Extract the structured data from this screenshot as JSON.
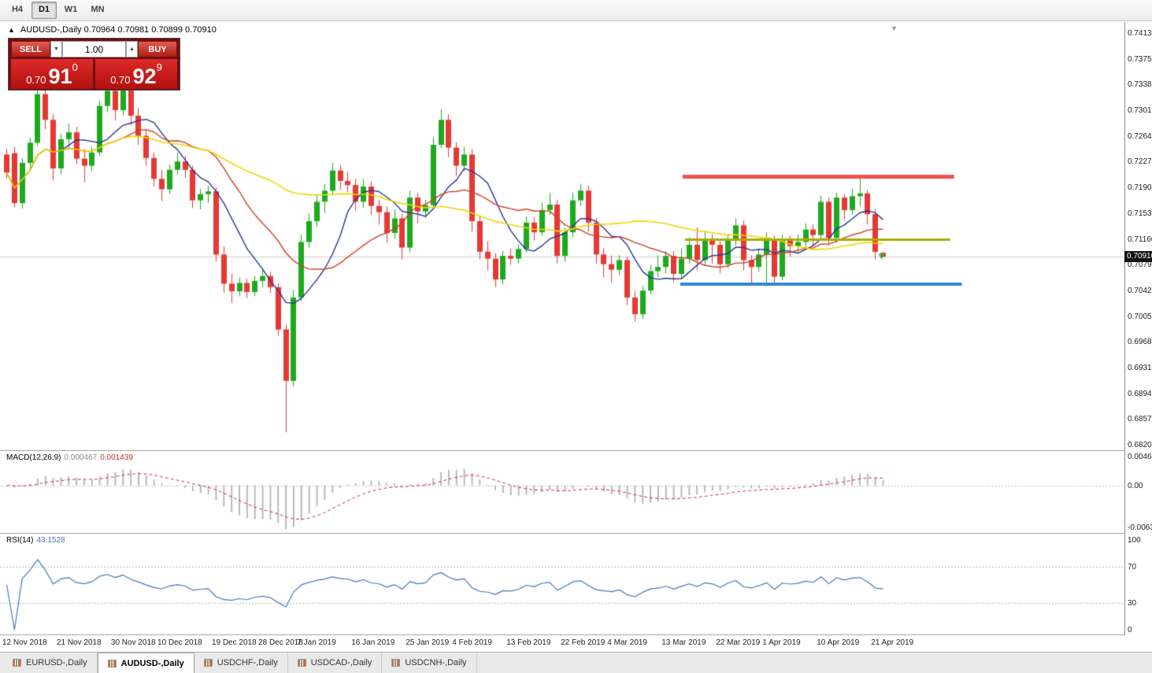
{
  "toolbar": {
    "timeframes": [
      {
        "label": "H4",
        "active": false
      },
      {
        "label": "D1",
        "active": true
      },
      {
        "label": "W1",
        "active": false
      },
      {
        "label": "MN",
        "active": false
      }
    ]
  },
  "chart": {
    "title": "AUDUSD-,Daily 0.70964 0.70981 0.70899 0.70910",
    "one_click": {
      "sell_label": "SELL",
      "buy_label": "BUY",
      "volume": "1.00",
      "sell_price": {
        "prefix": "0.70",
        "big": "91",
        "sup": "0"
      },
      "buy_price": {
        "prefix": "0.70",
        "big": "92",
        "sup": "9"
      }
    },
    "price_axis": {
      "labels": [
        "0.74130",
        "0.73750",
        "0.73380",
        "0.73010",
        "0.72640",
        "0.72270",
        "0.71900",
        "0.71530",
        "0.71160",
        "0.70790",
        "0.70420",
        "0.70050",
        "0.69680",
        "0.69310",
        "0.68940",
        "0.68570",
        "0.68200"
      ],
      "current": "0.70910"
    },
    "date_axis": {
      "labels": [
        {
          "text": "12 Nov 2018",
          "index": 0
        },
        {
          "text": "21 Nov 2018",
          "index": 7
        },
        {
          "text": "30 Nov 2018",
          "index": 14
        },
        {
          "text": "10 Dec 2018",
          "index": 20
        },
        {
          "text": "19 Dec 2018",
          "index": 27
        },
        {
          "text": "28 Dec 2018",
          "index": 33
        },
        {
          "text": "7 Jan 2019",
          "index": 38
        },
        {
          "text": "16 Jan 2019",
          "index": 45
        },
        {
          "text": "25 Jan 2019",
          "index": 52
        },
        {
          "text": "4 Feb 2019",
          "index": 58
        },
        {
          "text": "13 Feb 2019",
          "index": 65
        },
        {
          "text": "22 Feb 2019",
          "index": 72
        },
        {
          "text": "4 Mar 2019",
          "index": 78
        },
        {
          "text": "13 Mar 2019",
          "index": 85
        },
        {
          "text": "22 Mar 2019",
          "index": 92
        },
        {
          "text": "1 Apr 2019",
          "index": 98
        },
        {
          "text": "10 Apr 2019",
          "index": 105
        },
        {
          "text": "21 Apr 2019",
          "index": 112
        }
      ]
    }
  },
  "chart_data": {
    "type": "candlestick",
    "symbol": "AUDUSD-",
    "timeframe": "Daily",
    "bid": 0.7091,
    "colors": {
      "up": "#1fa91f",
      "down": "#e53935",
      "bid_line": "#cccccc"
    },
    "candles": [
      [
        0.7238,
        0.7246,
        0.7204,
        0.7212
      ],
      [
        0.724,
        0.7249,
        0.7162,
        0.7168
      ],
      [
        0.7168,
        0.7233,
        0.716,
        0.7226
      ],
      [
        0.7226,
        0.7262,
        0.7218,
        0.7255
      ],
      [
        0.7255,
        0.7337,
        0.725,
        0.7325
      ],
      [
        0.7325,
        0.7336,
        0.7274,
        0.7288
      ],
      [
        0.7288,
        0.7296,
        0.72,
        0.7218
      ],
      [
        0.7218,
        0.7268,
        0.721,
        0.726
      ],
      [
        0.726,
        0.7283,
        0.7247,
        0.727
      ],
      [
        0.727,
        0.7278,
        0.7224,
        0.7232
      ],
      [
        0.7232,
        0.7246,
        0.7198,
        0.7222
      ],
      [
        0.7222,
        0.7249,
        0.7214,
        0.7241
      ],
      [
        0.7241,
        0.7316,
        0.7236,
        0.7308
      ],
      [
        0.7308,
        0.7337,
        0.7299,
        0.733
      ],
      [
        0.733,
        0.7338,
        0.7287,
        0.7302
      ],
      [
        0.7302,
        0.7342,
        0.7294,
        0.7336
      ],
      [
        0.7336,
        0.7341,
        0.7281,
        0.7294
      ],
      [
        0.7294,
        0.7305,
        0.7252,
        0.7265
      ],
      [
        0.7265,
        0.7273,
        0.7222,
        0.7233
      ],
      [
        0.7233,
        0.7241,
        0.7192,
        0.7203
      ],
      [
        0.7203,
        0.7216,
        0.7171,
        0.7188
      ],
      [
        0.7188,
        0.7223,
        0.7181,
        0.7216
      ],
      [
        0.7216,
        0.7241,
        0.7209,
        0.7228
      ],
      [
        0.7228,
        0.7236,
        0.7204,
        0.7216
      ],
      [
        0.7216,
        0.7222,
        0.7161,
        0.7172
      ],
      [
        0.7172,
        0.7189,
        0.7159,
        0.7181
      ],
      [
        0.7181,
        0.7193,
        0.7168,
        0.7185
      ],
      [
        0.7185,
        0.7191,
        0.7084,
        0.7094
      ],
      [
        0.7094,
        0.7106,
        0.7039,
        0.7052
      ],
      [
        0.7052,
        0.7066,
        0.7024,
        0.7041
      ],
      [
        0.7041,
        0.7061,
        0.7034,
        0.7053
      ],
      [
        0.7053,
        0.7059,
        0.7031,
        0.704
      ],
      [
        0.704,
        0.7063,
        0.7034,
        0.7056
      ],
      [
        0.7056,
        0.7073,
        0.7047,
        0.7063
      ],
      [
        0.7063,
        0.7069,
        0.7039,
        0.7047
      ],
      [
        0.7047,
        0.7053,
        0.6977,
        0.6986
      ],
      [
        0.6986,
        0.6993,
        0.6838,
        0.6912
      ],
      [
        0.6912,
        0.7043,
        0.6904,
        0.7032
      ],
      [
        0.7032,
        0.7123,
        0.7027,
        0.7112
      ],
      [
        0.7112,
        0.7153,
        0.7104,
        0.7142
      ],
      [
        0.7142,
        0.7179,
        0.7134,
        0.717
      ],
      [
        0.717,
        0.7196,
        0.7154,
        0.7186
      ],
      [
        0.7186,
        0.7226,
        0.7179,
        0.7215
      ],
      [
        0.7215,
        0.7223,
        0.7187,
        0.72
      ],
      [
        0.72,
        0.7213,
        0.7184,
        0.7194
      ],
      [
        0.7194,
        0.7203,
        0.7157,
        0.717
      ],
      [
        0.717,
        0.7203,
        0.7161,
        0.7192
      ],
      [
        0.7192,
        0.7199,
        0.7151,
        0.7164
      ],
      [
        0.7164,
        0.7173,
        0.7137,
        0.7155
      ],
      [
        0.7155,
        0.7163,
        0.7111,
        0.7125
      ],
      [
        0.7125,
        0.7159,
        0.7117,
        0.7146
      ],
      [
        0.7146,
        0.7153,
        0.7087,
        0.7104
      ],
      [
        0.7104,
        0.7186,
        0.7097,
        0.7176
      ],
      [
        0.7176,
        0.7183,
        0.7139,
        0.7156
      ],
      [
        0.7156,
        0.7173,
        0.7147,
        0.7165
      ],
      [
        0.7165,
        0.7263,
        0.7159,
        0.7252
      ],
      [
        0.7252,
        0.7303,
        0.7247,
        0.7288
      ],
      [
        0.7288,
        0.7296,
        0.7234,
        0.7248
      ],
      [
        0.7248,
        0.7256,
        0.7207,
        0.7222
      ],
      [
        0.7222,
        0.7249,
        0.7214,
        0.7238
      ],
      [
        0.7238,
        0.7246,
        0.7127,
        0.7142
      ],
      [
        0.7142,
        0.7149,
        0.7087,
        0.7098
      ],
      [
        0.7098,
        0.7113,
        0.7071,
        0.7088
      ],
      [
        0.7088,
        0.7096,
        0.7047,
        0.7058
      ],
      [
        0.7058,
        0.7099,
        0.7051,
        0.7092
      ],
      [
        0.7092,
        0.7103,
        0.7079,
        0.7088
      ],
      [
        0.7088,
        0.7109,
        0.7081,
        0.7102
      ],
      [
        0.7102,
        0.7149,
        0.7097,
        0.714
      ],
      [
        0.714,
        0.7147,
        0.7114,
        0.7126
      ],
      [
        0.7126,
        0.7169,
        0.7121,
        0.7158
      ],
      [
        0.7158,
        0.7183,
        0.7151,
        0.7166
      ],
      [
        0.7166,
        0.7173,
        0.7081,
        0.7092
      ],
      [
        0.7092,
        0.7133,
        0.7084,
        0.7126
      ],
      [
        0.7126,
        0.7183,
        0.7119,
        0.7172
      ],
      [
        0.7172,
        0.7196,
        0.7164,
        0.7186
      ],
      [
        0.7186,
        0.7193,
        0.7127,
        0.714
      ],
      [
        0.714,
        0.7147,
        0.7081,
        0.7094
      ],
      [
        0.7094,
        0.7103,
        0.7061,
        0.708
      ],
      [
        0.708,
        0.7093,
        0.7054,
        0.7072
      ],
      [
        0.7072,
        0.7093,
        0.7064,
        0.7086
      ],
      [
        0.7086,
        0.7091,
        0.7021,
        0.7032
      ],
      [
        0.7032,
        0.7041,
        0.6997,
        0.7008
      ],
      [
        0.7008,
        0.7049,
        0.7001,
        0.7042
      ],
      [
        0.7042,
        0.7079,
        0.7037,
        0.707
      ],
      [
        0.707,
        0.7093,
        0.7061,
        0.7076
      ],
      [
        0.7076,
        0.7099,
        0.7067,
        0.7092
      ],
      [
        0.7092,
        0.7099,
        0.7054,
        0.7066
      ],
      [
        0.7066,
        0.7103,
        0.7059,
        0.7088
      ],
      [
        0.7088,
        0.7119,
        0.7081,
        0.7108
      ],
      [
        0.7108,
        0.7133,
        0.7071,
        0.7086
      ],
      [
        0.7086,
        0.7126,
        0.7079,
        0.7116
      ],
      [
        0.7116,
        0.7123,
        0.7081,
        0.7108
      ],
      [
        0.7108,
        0.7113,
        0.7067,
        0.708
      ],
      [
        0.708,
        0.7123,
        0.7074,
        0.7114
      ],
      [
        0.7114,
        0.7146,
        0.7107,
        0.7136
      ],
      [
        0.7136,
        0.7143,
        0.7071,
        0.7086
      ],
      [
        0.7086,
        0.7093,
        0.7051,
        0.7076
      ],
      [
        0.7076,
        0.7103,
        0.7069,
        0.7094
      ],
      [
        0.7094,
        0.7126,
        0.7048,
        0.7116
      ],
      [
        0.7116,
        0.7121,
        0.7051,
        0.7062
      ],
      [
        0.7062,
        0.7123,
        0.7057,
        0.7114
      ],
      [
        0.7114,
        0.7121,
        0.7091,
        0.7106
      ],
      [
        0.7106,
        0.7123,
        0.7097,
        0.7112
      ],
      [
        0.7112,
        0.7139,
        0.7104,
        0.713
      ],
      [
        0.713,
        0.7137,
        0.7107,
        0.7122
      ],
      [
        0.7122,
        0.7179,
        0.7117,
        0.717
      ],
      [
        0.717,
        0.7176,
        0.7107,
        0.7118
      ],
      [
        0.7118,
        0.7183,
        0.7111,
        0.7176
      ],
      [
        0.7176,
        0.7181,
        0.7144,
        0.7158
      ],
      [
        0.7158,
        0.7189,
        0.7151,
        0.7178
      ],
      [
        0.7178,
        0.7206,
        0.7163,
        0.7182
      ],
      [
        0.7182,
        0.7187,
        0.7137,
        0.7152
      ],
      [
        0.7152,
        0.7159,
        0.7087,
        0.7098
      ],
      [
        0.70964,
        0.70981,
        0.70899,
        0.7091
      ]
    ],
    "overlays": [
      {
        "name": "ma-fast",
        "period": 8,
        "color": "#283593",
        "width": 1.4
      },
      {
        "name": "ma-medium",
        "period": 16,
        "color": "#cc4125",
        "width": 1.4
      },
      {
        "name": "ma-slow",
        "period": 45,
        "color": "#f0d500",
        "width": 1.6
      }
    ],
    "hlines": [
      {
        "name": "resistance-line",
        "price": 0.7207,
        "color": "#ef5350",
        "width": 5,
        "from": 87.5,
        "to": 122.5
      },
      {
        "name": "pivot-line",
        "price": 0.71165,
        "color": "#a9ad00",
        "width": 3,
        "from": 87.8,
        "to": 122.0
      },
      {
        "name": "support-line",
        "price": 0.70515,
        "color": "#2e86d3",
        "width": 4,
        "from": 87.2,
        "to": 123.5
      }
    ],
    "marker": {
      "index": 112.8,
      "price": 0.70915,
      "color": "#2eb82e"
    }
  },
  "macd": {
    "label": "MACD(12,26,9)",
    "main_value": "0.000467",
    "signal_value": "0.001439",
    "params": {
      "fast": 12,
      "slow": 26,
      "signal": 9
    },
    "axis": [
      "0.0046496",
      "0.00",
      "-0.0063906"
    ],
    "colors": {
      "histogram": "#b8b8b8",
      "signal": "#cc3333"
    }
  },
  "rsi": {
    "label": "RSI(14)",
    "value": "43.1528",
    "period": 14,
    "axis": [
      "100",
      "70",
      "30",
      "0"
    ],
    "levels": [
      70,
      30
    ],
    "color": "#4576b5"
  },
  "tabs": [
    {
      "label": "EURUSD-,Daily",
      "active": false
    },
    {
      "label": "AUDUSD-,Daily",
      "active": true
    },
    {
      "label": "USDCHF-,Daily",
      "active": false
    },
    {
      "label": "USDCAD-,Daily",
      "active": false
    },
    {
      "label": "USDCNH-,Daily",
      "active": false
    }
  ],
  "icons": {
    "collapse_arrow": "▲",
    "spin_up": "▲",
    "spin_down": "▼",
    "shift_marker": "▼"
  }
}
